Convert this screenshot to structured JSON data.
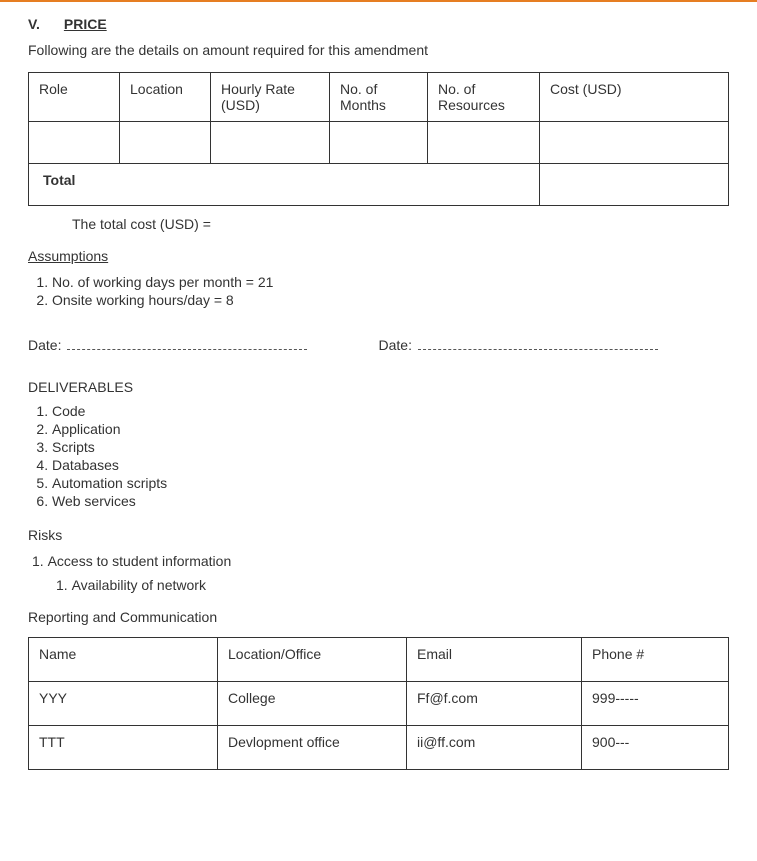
{
  "section": {
    "roman": "V.",
    "title": "PRICE"
  },
  "introText": "Following are the details on amount required for this amendment",
  "priceTable": {
    "headers": [
      "Role",
      "Location",
      "Hourly Rate (USD)",
      "No. of Months",
      "No. of Resources",
      "Cost (USD)"
    ],
    "rows": [
      [
        "",
        "",
        "",
        "",
        "",
        ""
      ]
    ],
    "totalLabel": "Total",
    "colWidths": [
      "13%",
      "13%",
      "17%",
      "14%",
      "16%",
      "27%"
    ]
  },
  "totalCostLine": "The total cost (USD) =",
  "assumptionsTitle": "Assumptions",
  "assumptions": [
    "No. of working days per month = 21",
    "Onsite working hours/day = 8"
  ],
  "dateLabel": "Date:",
  "deliverablesTitle": "DELIVERABLES",
  "deliverables": [
    "Code",
    "Application",
    "Scripts",
    "Databases",
    "Automation scripts",
    "Web services"
  ],
  "risksTitle": "Risks",
  "risks": {
    "outer": "Access to student information",
    "inner": "Availability of network"
  },
  "reportingTitle": "Reporting and Communication",
  "contactsTable": {
    "headers": [
      "Name",
      "Location/Office",
      "Email",
      "Phone #"
    ],
    "rows": [
      [
        "YYY",
        "College",
        "Ff@f.com",
        "999-----"
      ],
      [
        "TTT",
        "Devlopment office",
        "ii@ff.com",
        "900---"
      ]
    ],
    "colWidths": [
      "27%",
      "27%",
      "25%",
      "21%"
    ]
  }
}
